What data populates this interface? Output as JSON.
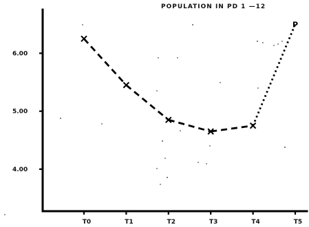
{
  "chart_data": {
    "type": "line",
    "title": "POPULATION IN PD 1 —12",
    "xlabel": "",
    "ylabel": "",
    "categories": [
      "T0",
      "T1",
      "T2",
      "T3",
      "T4",
      "T5"
    ],
    "ylim": [
      3.5,
      6.8
    ],
    "yticks": [
      {
        "value": 4.0,
        "label": "4.00"
      },
      {
        "value": 5.0,
        "label": "5.00"
      },
      {
        "value": 6.0,
        "label": "6.00"
      }
    ],
    "grid": false,
    "legend": "none",
    "series": [
      {
        "values": [
          6.25,
          5.45,
          4.85,
          4.65,
          4.75,
          6.5
        ],
        "markers": [
          "x",
          "x",
          "x",
          "x",
          "x",
          "p"
        ],
        "line_styles": [
          "dashed",
          "dashed",
          "dashed",
          "dashed",
          "dotted"
        ]
      }
    ]
  }
}
